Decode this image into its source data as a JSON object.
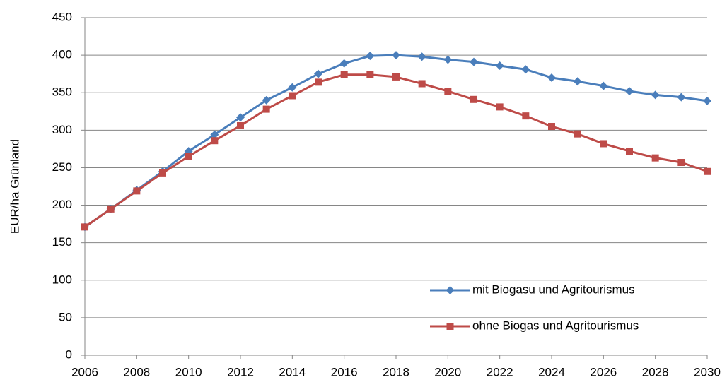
{
  "chart_data": {
    "type": "line",
    "y_label": "EUR/ha Grünland",
    "x": [
      2006,
      2007,
      2008,
      2009,
      2010,
      2011,
      2012,
      2013,
      2014,
      2015,
      2016,
      2017,
      2018,
      2019,
      2020,
      2021,
      2022,
      2023,
      2024,
      2025,
      2026,
      2027,
      2028,
      2029,
      2030
    ],
    "series": [
      {
        "name": "mit Biogasu und Agritourismus",
        "color": "#4a7ebb",
        "marker": "diamond",
        "values": [
          171,
          195,
          220,
          245,
          272,
          294,
          317,
          340,
          357,
          375,
          389,
          399,
          400,
          398,
          394,
          391,
          386,
          381,
          370,
          365,
          359,
          352,
          347,
          344,
          339
        ]
      },
      {
        "name": "ohne Biogas und Agritourismus",
        "color": "#be4b48",
        "marker": "square",
        "values": [
          171,
          195,
          219,
          243,
          265,
          286,
          306,
          328,
          346,
          364,
          374,
          374,
          371,
          362,
          352,
          341,
          331,
          319,
          305,
          295,
          282,
          272,
          263,
          257,
          245
        ]
      }
    ],
    "xlim": [
      2006,
      2030
    ],
    "xticks": [
      2006,
      2008,
      2010,
      2012,
      2014,
      2016,
      2018,
      2020,
      2022,
      2024,
      2026,
      2028,
      2030
    ],
    "ylim": [
      0,
      450
    ],
    "yticks": [
      0,
      50,
      100,
      150,
      200,
      250,
      300,
      350,
      400,
      450
    ],
    "grid": true,
    "legend": "lower right"
  }
}
